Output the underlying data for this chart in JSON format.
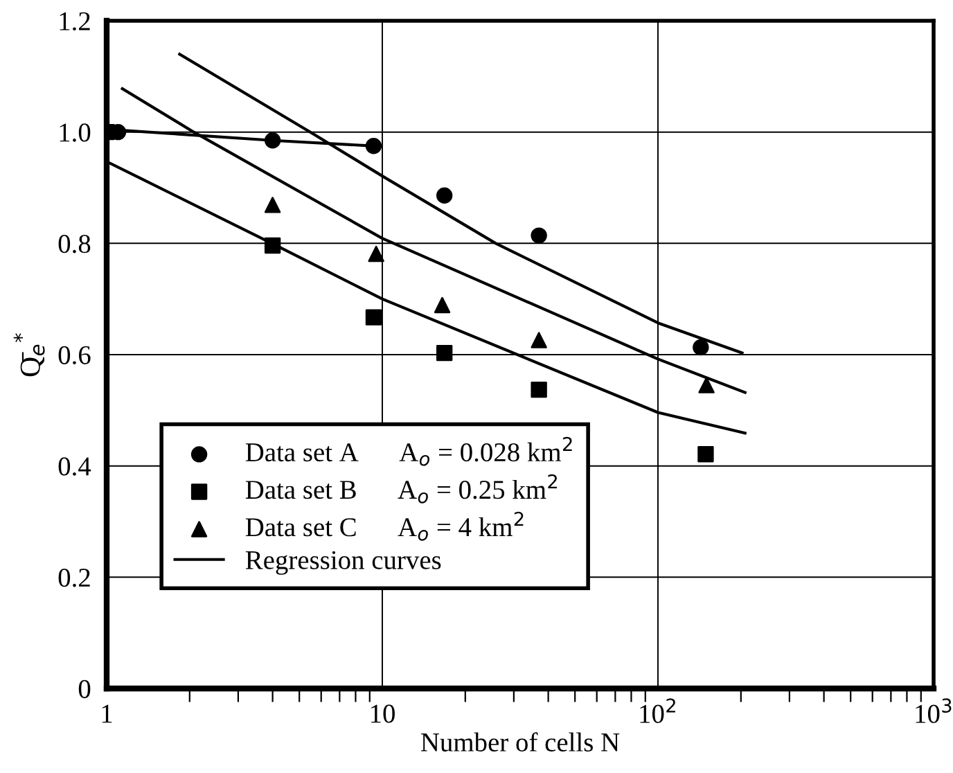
{
  "chart_data": {
    "type": "scatter",
    "xlabel": "Number of cells N",
    "ylabel": "Q̄$_{e}$$^{*}$",
    "log": "x",
    "xlim": [
      1,
      1000
    ],
    "ylim": [
      0,
      1.2
    ],
    "xticks": [
      1,
      10,
      {
        "value": 100,
        "label": "10$^{2}$"
      },
      {
        "value": 1000,
        "label": "10$^{3}$"
      }
    ],
    "yticks": [
      0,
      0.2,
      0.4,
      0.6,
      0.8,
      {
        "value": 1,
        "label": "1.0"
      },
      1.2
    ],
    "grid": true,
    "legend": "bottom left",
    "series": [
      {
        "name": "Data set A      A$_{o}$ = 0.028 km$^{2}$",
        "color": "#000000",
        "marker": "circle",
        "x": [
          1.1,
          4,
          9.3,
          16.8,
          37,
          143
        ],
        "values": [
          1.0,
          0.985,
          0.975,
          0.886,
          0.814,
          0.613
        ]
      },
      {
        "name": "Data set B      A$_{o}$ = 0.25 km$^{2}$",
        "color": "#000000",
        "marker": "square",
        "x": [
          1,
          4,
          9.3,
          16.8,
          37,
          149
        ],
        "values": [
          1.0,
          0.796,
          0.667,
          0.603,
          0.537,
          0.421
        ]
      },
      {
        "name": "Data set C      A$_{o}$ = 4 km$^{2}$",
        "color": "#000000",
        "marker": "triangle",
        "x": [
          4,
          9.5,
          16.5,
          37,
          150
        ],
        "values": [
          0.869,
          0.781,
          0.689,
          0.626,
          0.545
        ]
      },
      {
        "name": "Regression curves",
        "color": "#000000",
        "type": "line",
        "marker": "none",
        "line_style": "solid",
        "x": [
          1.84,
          5.48,
          10,
          25.8,
          100,
          202
        ],
        "values": [
          1.14,
          1.0,
          0.921,
          0.8,
          0.657,
          0.603
        ]
      },
      {
        "color": "#000000",
        "type": "line",
        "marker": "none",
        "line_style": "solid",
        "x": [
          1.14,
          2.07,
          10,
          100,
          207
        ],
        "values": [
          1.078,
          1.0,
          0.809,
          0.592,
          0.532
        ]
      },
      {
        "color": "#000000",
        "type": "line",
        "marker": "none",
        "line_style": "solid",
        "x": [
          1,
          4.13,
          10,
          100,
          207
        ],
        "values": [
          0.947,
          0.796,
          0.7,
          0.496,
          0.459
        ]
      },
      {
        "color": "#000000",
        "type": "line",
        "marker": "none",
        "line_style": "solid",
        "x": [
          1,
          4,
          9.3
        ],
        "values": [
          1.005,
          0.985,
          0.975
        ]
      }
    ]
  }
}
